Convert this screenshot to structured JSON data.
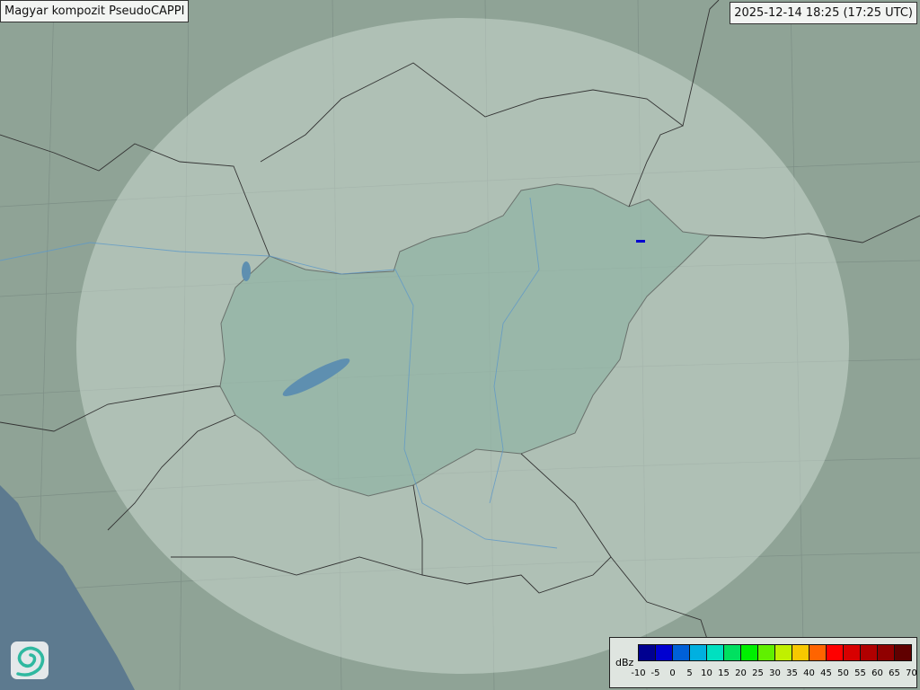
{
  "header": {
    "title": "Magyar kompozit  PseudoCAPPI",
    "timestamp": "2025-12-14 18:25 (17:25 UTC)"
  },
  "legend": {
    "unit": "dBz",
    "ticks": [
      "-10",
      "-5",
      "0",
      "5",
      "10",
      "15",
      "20",
      "25",
      "30",
      "35",
      "40",
      "45",
      "50",
      "55",
      "60",
      "65",
      "70"
    ],
    "colors": [
      "#000090",
      "#0000d0",
      "#0060d8",
      "#00b0e0",
      "#00e0c0",
      "#00e060",
      "#00f000",
      "#60f000",
      "#c0f000",
      "#f8c800",
      "#ff6400",
      "#ff0000",
      "#d80000",
      "#b00000",
      "#900000",
      "#600000"
    ]
  },
  "map": {
    "background": "#8fa396",
    "coverage": "#d8e4dc",
    "sea": "#5d7a8f",
    "hungary_fill": "#88b0a0",
    "radar_echo_color": "#0000d0"
  },
  "logo": {
    "icon": "swirl-logo-icon"
  }
}
